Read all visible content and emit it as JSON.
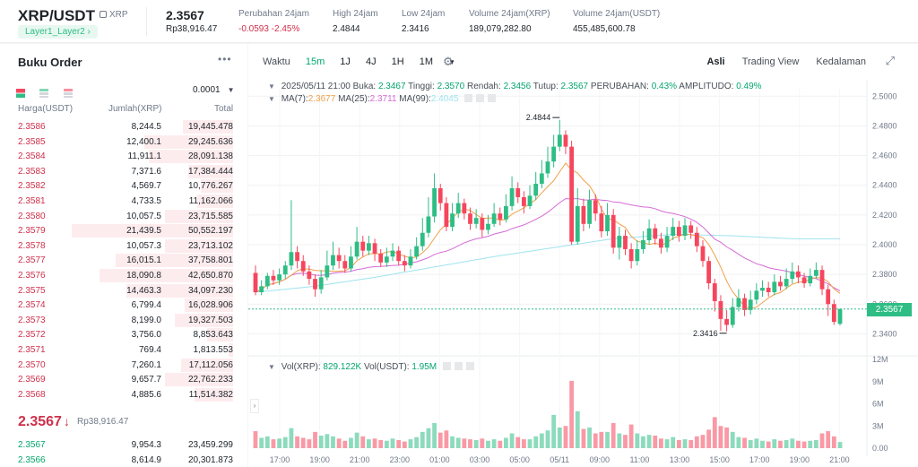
{
  "header": {
    "pair": "XRP/USDT",
    "coin": "XRP",
    "tag": "Layer1_Layer2",
    "price": "2.3567",
    "price_sub": "Rp38,916.47",
    "stats": [
      {
        "label": "Perubahan 24jam",
        "value": "-0.0593 -2.45%",
        "color": "#cf304a"
      },
      {
        "label": "High 24jam",
        "value": "2.4844",
        "color": "#1e2329"
      },
      {
        "label": "Low 24jam",
        "value": "2.3416",
        "color": "#1e2329"
      },
      {
        "label": "Volume 24jam(XRP)",
        "value": "189,079,282.80",
        "color": "#1e2329"
      },
      {
        "label": "Volume 24jam(USDT)",
        "value": "455,485,600.78",
        "color": "#1e2329"
      }
    ]
  },
  "orderbook": {
    "title": "Buku Order",
    "tick": "0.0001",
    "col_price": "Harga(USDT)",
    "col_amount": "Jumlah(XRP)",
    "col_total": "Total",
    "asks": [
      {
        "price": "2.3586",
        "amount": "8,244.5",
        "total": "19,445.478",
        "depth": 0.31
      },
      {
        "price": "2.3585",
        "amount": "12,400.1",
        "total": "29,245.636",
        "depth": 0.55
      },
      {
        "price": "2.3584",
        "amount": "11,911.1",
        "total": "28,091.138",
        "depth": 0.52
      },
      {
        "price": "2.3583",
        "amount": "7,371.6",
        "total": "17,384.444",
        "depth": 0.28
      },
      {
        "price": "2.3582",
        "amount": "4,569.7",
        "total": "10,776.267",
        "depth": 0.2
      },
      {
        "price": "2.3581",
        "amount": "4,733.5",
        "total": "11,162.066",
        "depth": 0.22
      },
      {
        "price": "2.3580",
        "amount": "10,057.5",
        "total": "23,715.585",
        "depth": 0.42
      },
      {
        "price": "2.3579",
        "amount": "21,439.5",
        "total": "50,552.197",
        "depth": 1.0
      },
      {
        "price": "2.3578",
        "amount": "10,057.3",
        "total": "23,713.102",
        "depth": 0.42
      },
      {
        "price": "2.3577",
        "amount": "16,015.1",
        "total": "37,758.801",
        "depth": 0.73
      },
      {
        "price": "2.3576",
        "amount": "18,090.8",
        "total": "42,650.870",
        "depth": 0.83
      },
      {
        "price": "2.3575",
        "amount": "14,463.3",
        "total": "34,097.230",
        "depth": 0.66
      },
      {
        "price": "2.3574",
        "amount": "6,799.4",
        "total": "16,028.906",
        "depth": 0.3
      },
      {
        "price": "2.3573",
        "amount": "8,199.0",
        "total": "19,327.503",
        "depth": 0.36
      },
      {
        "price": "2.3572",
        "amount": "3,756.0",
        "total": "8,853.643",
        "depth": 0.16
      },
      {
        "price": "2.3571",
        "amount": "769.4",
        "total": "1,813.553",
        "depth": 0.03
      },
      {
        "price": "2.3570",
        "amount": "7,260.1",
        "total": "17,112.056",
        "depth": 0.32
      },
      {
        "price": "2.3569",
        "amount": "9,657.7",
        "total": "22,762.233",
        "depth": 0.42
      },
      {
        "price": "2.3568",
        "amount": "4,885.6",
        "total": "11,514.382",
        "depth": 0.24
      }
    ],
    "last_price": "2.3567",
    "last_price_arrow": "↓",
    "last_price_sub": "Rp38,916.47",
    "bids": [
      {
        "price": "2.3567",
        "amount": "9,954.3",
        "total": "23,459.299",
        "depth": 0.0
      },
      {
        "price": "2.3566",
        "amount": "8,614.9",
        "total": "20,301.873",
        "depth": 0.0
      }
    ]
  },
  "toolbar": {
    "time_label": "Waktu",
    "intervals": [
      "15m",
      "1J",
      "4J",
      "1H",
      "1M"
    ],
    "active_interval": "15m",
    "views": [
      "Asli",
      "Trading View",
      "Kedalaman"
    ],
    "active_view": "Asli"
  },
  "legend": {
    "ohlc_prefix": "2025/05/11 21:00",
    "open_label": "Buka:",
    "open": "2.3467",
    "high_label": "Tinggi:",
    "high": "2.3570",
    "low_label": "Rendah:",
    "low": "2.3456",
    "close_label": "Tutup:",
    "close": "2.3567",
    "change_label": "PERUBAHAN:",
    "change": "0.43%",
    "amp_label": "AMPLITUDO:",
    "amp": "0.49%",
    "ma7_label": "MA(7):",
    "ma7": "2.3677",
    "ma25_label": "MA(25):",
    "ma25": "2.3711",
    "ma99_label": "MA(99):",
    "ma99": "2.4045",
    "vol_label": "Vol(XRP):",
    "vol_xrp": "829.122K",
    "volu_label": "Vol(USDT):",
    "vol_usdt": "1.95M"
  },
  "chart_data": {
    "type": "candlestick",
    "y_ticks": [
      "2.5000",
      "2.4800",
      "2.4600",
      "2.4400",
      "2.4200",
      "2.4000",
      "2.3800",
      "2.3600",
      "2.3400"
    ],
    "ylim": [
      2.333,
      2.505
    ],
    "x_ticks": [
      "17:00",
      "19:00",
      "21:00",
      "23:00",
      "01:00",
      "03:00",
      "05:00",
      "05/11",
      "09:00",
      "11:00",
      "13:00",
      "15:00",
      "17:00",
      "19:00",
      "21:00"
    ],
    "vol_ticks": [
      "12M",
      "9M",
      "6M",
      "3M",
      "0.00"
    ],
    "vol_max": 12,
    "high_marker": "2.4844",
    "low_marker": "2.3416",
    "current_price": "2.3567",
    "colors": {
      "up": "#2ebd85",
      "down": "#f6465d",
      "ma7": "#f0a04b",
      "ma25": "#d66ad6",
      "ma99": "#9fe3ef"
    },
    "candles": [
      [
        2.381,
        2.368,
        2.386,
        2.366,
        2.3
      ],
      [
        2.368,
        2.372,
        2.376,
        2.366,
        1.4
      ],
      [
        2.372,
        2.379,
        2.381,
        2.37,
        1.6
      ],
      [
        2.379,
        2.376,
        2.383,
        2.373,
        1.2
      ],
      [
        2.376,
        2.38,
        2.384,
        2.373,
        1.3
      ],
      [
        2.38,
        2.386,
        2.389,
        2.377,
        1.5
      ],
      [
        2.386,
        2.395,
        2.43,
        2.383,
        2.7
      ],
      [
        2.395,
        2.389,
        2.399,
        2.384,
        1.6
      ],
      [
        2.389,
        2.382,
        2.393,
        2.379,
        1.4
      ],
      [
        2.382,
        2.377,
        2.386,
        2.373,
        1.2
      ],
      [
        2.377,
        2.37,
        2.38,
        2.365,
        2.2
      ],
      [
        2.37,
        2.378,
        2.383,
        2.367,
        1.7
      ],
      [
        2.378,
        2.386,
        2.396,
        2.376,
        1.9
      ],
      [
        2.386,
        2.393,
        2.402,
        2.383,
        1.6
      ],
      [
        2.393,
        2.389,
        2.398,
        2.384,
        1.3
      ],
      [
        2.389,
        2.384,
        2.393,
        2.381,
        1.0
      ],
      [
        2.384,
        2.392,
        2.399,
        2.382,
        1.4
      ],
      [
        2.392,
        2.402,
        2.412,
        2.39,
        2.1
      ],
      [
        2.402,
        2.396,
        2.406,
        2.392,
        1.6
      ],
      [
        2.396,
        2.401,
        2.406,
        2.393,
        1.2
      ],
      [
        2.401,
        2.394,
        2.404,
        2.389,
        1.3
      ],
      [
        2.394,
        2.388,
        2.397,
        2.385,
        1.1
      ],
      [
        2.388,
        2.392,
        2.398,
        2.385,
        1.0
      ],
      [
        2.392,
        2.396,
        2.401,
        2.389,
        1.3
      ],
      [
        2.396,
        2.389,
        2.399,
        2.386,
        1.1
      ],
      [
        2.389,
        2.386,
        2.393,
        2.382,
        0.9
      ],
      [
        2.386,
        2.392,
        2.397,
        2.384,
        1.2
      ],
      [
        2.392,
        2.399,
        2.405,
        2.39,
        1.5
      ],
      [
        2.399,
        2.408,
        2.418,
        2.396,
        2.2
      ],
      [
        2.408,
        2.419,
        2.432,
        2.405,
        2.7
      ],
      [
        2.419,
        2.438,
        2.448,
        2.415,
        3.4
      ],
      [
        2.438,
        2.428,
        2.441,
        2.423,
        2.1
      ],
      [
        2.428,
        2.412,
        2.432,
        2.409,
        2.4
      ],
      [
        2.412,
        2.421,
        2.428,
        2.409,
        1.6
      ],
      [
        2.421,
        2.428,
        2.435,
        2.418,
        1.4
      ],
      [
        2.428,
        2.421,
        2.431,
        2.417,
        1.3
      ],
      [
        2.421,
        2.414,
        2.425,
        2.41,
        1.2
      ],
      [
        2.414,
        2.418,
        2.424,
        2.411,
        1.1
      ],
      [
        2.418,
        2.41,
        2.421,
        2.405,
        1.3
      ],
      [
        2.41,
        2.414,
        2.42,
        2.407,
        1.0
      ],
      [
        2.414,
        2.421,
        2.428,
        2.412,
        1.2
      ],
      [
        2.421,
        2.417,
        2.425,
        2.413,
        1.0
      ],
      [
        2.417,
        2.426,
        2.434,
        2.415,
        1.4
      ],
      [
        2.426,
        2.438,
        2.446,
        2.423,
        2.0
      ],
      [
        2.438,
        2.432,
        2.442,
        2.428,
        1.5
      ],
      [
        2.432,
        2.426,
        2.436,
        2.421,
        1.2
      ],
      [
        2.426,
        2.433,
        2.44,
        2.424,
        1.2
      ],
      [
        2.433,
        2.441,
        2.449,
        2.43,
        1.6
      ],
      [
        2.441,
        2.448,
        2.457,
        2.438,
        2.0
      ],
      [
        2.448,
        2.456,
        2.466,
        2.445,
        2.4
      ],
      [
        2.456,
        2.466,
        2.474,
        2.452,
        4.5
      ],
      [
        2.466,
        2.474,
        2.484,
        2.463,
        2.8
      ],
      [
        2.474,
        2.466,
        2.477,
        2.461,
        3.0
      ],
      [
        2.466,
        2.402,
        2.47,
        2.4,
        9.1
      ],
      [
        2.402,
        2.426,
        2.438,
        2.4,
        5.0
      ],
      [
        2.426,
        2.414,
        2.431,
        2.409,
        2.6
      ],
      [
        2.414,
        2.43,
        2.437,
        2.411,
        2.8
      ],
      [
        2.43,
        2.421,
        2.434,
        2.416,
        2.0
      ],
      [
        2.421,
        2.409,
        2.426,
        2.405,
        2.2
      ],
      [
        2.409,
        2.42,
        2.428,
        2.406,
        2.2
      ],
      [
        2.42,
        2.398,
        2.424,
        2.394,
        3.4
      ],
      [
        2.398,
        2.406,
        2.412,
        2.39,
        2.0
      ],
      [
        2.406,
        2.397,
        2.41,
        2.393,
        1.8
      ],
      [
        2.397,
        2.389,
        2.401,
        2.384,
        3.2
      ],
      [
        2.389,
        2.397,
        2.403,
        2.386,
        2.0
      ],
      [
        2.397,
        2.403,
        2.409,
        2.394,
        1.6
      ],
      [
        2.403,
        2.411,
        2.417,
        2.4,
        1.8
      ],
      [
        2.411,
        2.404,
        2.414,
        2.4,
        1.7
      ],
      [
        2.404,
        2.398,
        2.408,
        2.394,
        1.3
      ],
      [
        2.398,
        2.406,
        2.412,
        2.395,
        1.2
      ],
      [
        2.406,
        2.412,
        2.418,
        2.403,
        1.5
      ],
      [
        2.412,
        2.406,
        2.416,
        2.402,
        1.1
      ],
      [
        2.406,
        2.413,
        2.418,
        2.403,
        1.2
      ],
      [
        2.413,
        2.408,
        2.416,
        2.404,
        1.1
      ],
      [
        2.408,
        2.399,
        2.412,
        2.395,
        1.6
      ],
      [
        2.399,
        2.389,
        2.403,
        2.385,
        1.8
      ],
      [
        2.389,
        2.374,
        2.392,
        2.37,
        2.5
      ],
      [
        2.374,
        2.362,
        2.377,
        2.355,
        4.2
      ],
      [
        2.362,
        2.35,
        2.366,
        2.342,
        3.0
      ],
      [
        2.35,
        2.346,
        2.356,
        2.3416,
        2.8
      ],
      [
        2.346,
        2.358,
        2.364,
        2.344,
        2.2
      ],
      [
        2.358,
        2.364,
        2.37,
        2.355,
        1.5
      ],
      [
        2.364,
        2.356,
        2.367,
        2.352,
        1.4
      ],
      [
        2.356,
        2.363,
        2.369,
        2.353,
        1.1
      ],
      [
        2.363,
        2.369,
        2.374,
        2.36,
        1.3
      ],
      [
        2.369,
        2.371,
        2.376,
        2.365,
        1.0
      ],
      [
        2.371,
        2.368,
        2.375,
        2.365,
        0.9
      ],
      [
        2.368,
        2.375,
        2.38,
        2.366,
        1.2
      ],
      [
        2.375,
        2.372,
        2.379,
        2.369,
        1.0
      ],
      [
        2.372,
        2.377,
        2.384,
        2.37,
        1.1
      ],
      [
        2.377,
        2.382,
        2.388,
        2.374,
        1.3
      ],
      [
        2.382,
        2.378,
        2.386,
        2.374,
        1.0
      ],
      [
        2.378,
        2.374,
        2.381,
        2.371,
        0.9
      ],
      [
        2.374,
        2.379,
        2.384,
        2.372,
        1.0
      ],
      [
        2.379,
        2.383,
        2.388,
        2.377,
        1.1
      ],
      [
        2.383,
        2.37,
        2.386,
        2.366,
        2.0
      ],
      [
        2.37,
        2.36,
        2.373,
        2.352,
        2.3
      ],
      [
        2.36,
        2.348,
        2.363,
        2.346,
        1.6
      ],
      [
        2.3467,
        2.3567,
        2.357,
        2.3456,
        0.83
      ]
    ]
  }
}
